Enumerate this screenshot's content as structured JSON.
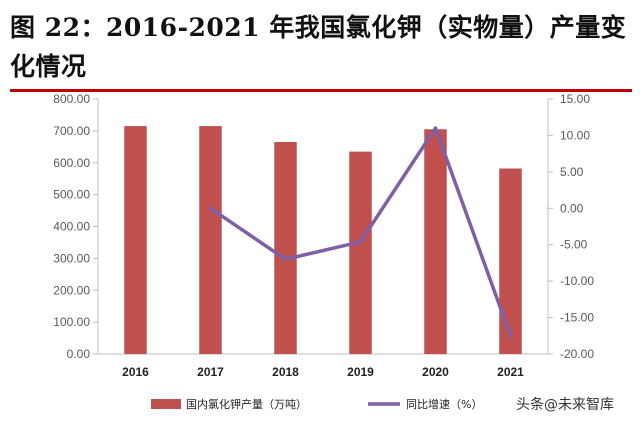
{
  "title": "图 22：2016-2021 年我国氯化钾（实物量）产量变化情况",
  "watermark": "头条@未来智库",
  "colors": {
    "bar": "#c0504d",
    "line": "#7f5fa5",
    "title_rule": "#c00000",
    "axis": "#bfbfbf"
  },
  "chart_data": {
    "type": "bar",
    "categories": [
      "2016",
      "2017",
      "2018",
      "2019",
      "2020",
      "2021"
    ],
    "series": [
      {
        "name": "国内氯化钾产量（万吨）",
        "type": "bar",
        "axis": "left",
        "values": [
          715,
          715,
          665,
          635,
          705,
          582
        ]
      },
      {
        "name": "同比增速（%）",
        "type": "line",
        "axis": "right",
        "values": [
          null,
          0.0,
          -7.0,
          -4.6,
          11.0,
          -17.5
        ]
      }
    ],
    "y_left": {
      "ylim": [
        0,
        800
      ],
      "ticks": [
        0,
        100,
        200,
        300,
        400,
        500,
        600,
        700,
        800
      ],
      "tick_labels": [
        "0.00",
        "100.00",
        "200.00",
        "300.00",
        "400.00",
        "500.00",
        "600.00",
        "700.00",
        "800.00"
      ]
    },
    "y_right": {
      "ylim": [
        -20,
        15
      ],
      "ticks": [
        15,
        10,
        5,
        0,
        -5,
        -10,
        -15,
        -20
      ],
      "tick_labels": [
        "15.00",
        "10.00",
        "5.00",
        "0.00",
        "-5.00",
        "-10.00",
        "-15.00",
        "-20.00"
      ]
    },
    "legend": [
      "国内氯化钾产量（万吨）",
      "同比增速（%）"
    ],
    "legend_position": "bottom",
    "grid": false
  }
}
